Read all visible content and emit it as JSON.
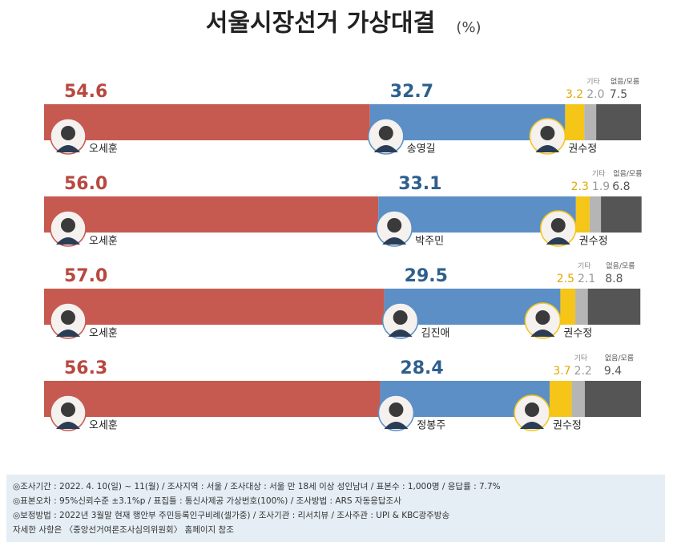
{
  "chart_data": {
    "type": "stacked-bar",
    "title": "서울시장선거 가상대결",
    "unit": "(%)",
    "xlim": [
      0,
      100
    ],
    "colors": [
      "#c65a50",
      "#5b8fc6",
      "#f5c518",
      "#b5b5b5",
      "#555555"
    ],
    "label_colors": [
      "#b8483f",
      "#2d5f8e",
      "#e0a800",
      "#9a9a9a",
      "#555555"
    ],
    "rows": [
      {
        "labels": [
          "오세훈",
          "송영길",
          "권수정",
          "기타",
          "없음/모름"
        ],
        "values": [
          54.6,
          32.7,
          3.2,
          2.0,
          7.5
        ],
        "value_labels": [
          "54.6",
          "32.7",
          "3.2",
          "2.0",
          "7.5"
        ]
      },
      {
        "labels": [
          "오세훈",
          "박주민",
          "권수정",
          "기타",
          "없음/모름"
        ],
        "values": [
          56.0,
          33.1,
          2.3,
          1.9,
          6.8
        ],
        "value_labels": [
          "56.0",
          "33.1",
          "2.3",
          "1.9",
          "6.8"
        ]
      },
      {
        "labels": [
          "오세훈",
          "김진애",
          "권수정",
          "기타",
          "없음/모름"
        ],
        "values": [
          57.0,
          29.5,
          2.5,
          2.1,
          8.8
        ],
        "value_labels": [
          "57.0",
          "29.5",
          "2.5",
          "2.1",
          "8.8"
        ]
      },
      {
        "labels": [
          "오세훈",
          "정봉주",
          "권수정",
          "기타",
          "없음/모름"
        ],
        "values": [
          56.3,
          28.4,
          3.7,
          2.2,
          9.4
        ],
        "value_labels": [
          "56.3",
          "28.4",
          "3.7",
          "2.2",
          "9.4"
        ]
      }
    ],
    "notes": [
      "◎조사기간 : 2022. 4. 10(일) ~ 11(월) / 조사지역 : 서울 / 조사대상 : 서울 만 18세 이상 성인남녀 / 표본수 : 1,000명 / 응답률 : 7.7%",
      "◎표본오차 : 95%신뢰수준 ±3.1%p / 표집틀 : 통신사제공 가상번호(100%) / 조사방법 : ARS 자동응답조사",
      "◎보정방법 : 2022년 3월말 현재 행안부 주민등록인구비례(셀가중) / 조사기관 : 리서치뷰 / 조사주관 : UPI & KBC광주방송",
      "자세한 사항은 〈중앙선거여론조사심의위원회〉 홈페이지 참조"
    ]
  }
}
